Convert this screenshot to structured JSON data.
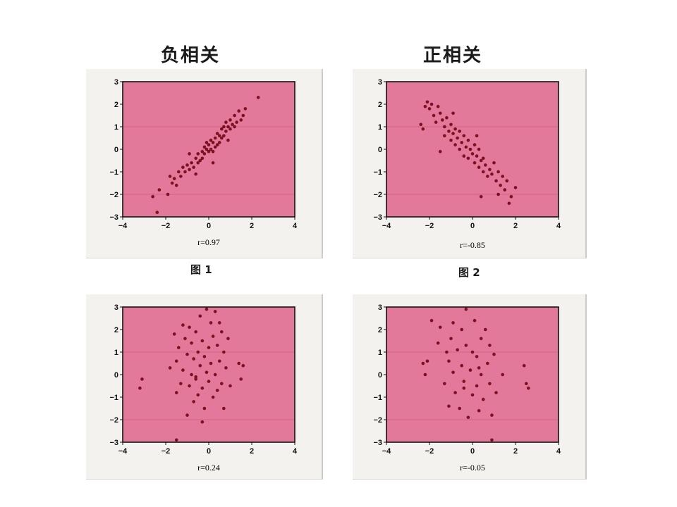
{
  "headings": {
    "left": "负相关",
    "right": "正相关"
  },
  "captions": {
    "fig1": "图 1",
    "fig2": "图 2"
  },
  "colors": {
    "plot_bg": "#e2789a",
    "point": "#7a1020",
    "frame": "#111111"
  },
  "chart_data": [
    {
      "type": "scatter",
      "id": "fig1",
      "r_label": "r=0.97",
      "xlim": [
        -4,
        4
      ],
      "ylim": [
        -3,
        3
      ],
      "xticks": [
        -4,
        -2,
        0,
        2,
        4
      ],
      "yticks": [
        -3,
        -2,
        -1,
        0,
        1,
        2,
        3
      ],
      "points": [
        [
          -2.6,
          -2.1
        ],
        [
          -2.4,
          -2.8
        ],
        [
          -2.3,
          -1.8
        ],
        [
          -1.9,
          -2.0
        ],
        [
          -1.7,
          -1.5
        ],
        [
          -1.6,
          -1.3
        ],
        [
          -1.5,
          -1.6
        ],
        [
          -1.4,
          -1.0
        ],
        [
          -1.3,
          -1.2
        ],
        [
          -1.2,
          -0.8
        ],
        [
          -1.1,
          -1.0
        ],
        [
          -1.0,
          -0.7
        ],
        [
          -0.9,
          -0.9
        ],
        [
          -0.8,
          -0.6
        ],
        [
          -0.7,
          -0.8
        ],
        [
          -0.6,
          -0.4
        ],
        [
          -0.5,
          -0.6
        ],
        [
          -0.5,
          -0.2
        ],
        [
          -0.4,
          -0.5
        ],
        [
          -0.3,
          -0.1
        ],
        [
          -0.3,
          -0.4
        ],
        [
          -0.2,
          0.1
        ],
        [
          -0.2,
          -0.2
        ],
        [
          -0.1,
          0.3
        ],
        [
          -0.1,
          0.0
        ],
        [
          0.0,
          -0.1
        ],
        [
          0.0,
          0.2
        ],
        [
          0.1,
          0.4
        ],
        [
          0.1,
          0.0
        ],
        [
          0.2,
          0.3
        ],
        [
          0.2,
          -0.1
        ],
        [
          0.3,
          0.5
        ],
        [
          0.3,
          0.1
        ],
        [
          0.4,
          0.7
        ],
        [
          0.4,
          0.2
        ],
        [
          0.5,
          0.6
        ],
        [
          0.5,
          0.3
        ],
        [
          0.6,
          0.9
        ],
        [
          0.6,
          0.5
        ],
        [
          0.7,
          1.0
        ],
        [
          0.7,
          0.6
        ],
        [
          0.8,
          0.8
        ],
        [
          0.8,
          1.2
        ],
        [
          0.9,
          1.0
        ],
        [
          1.0,
          1.3
        ],
        [
          1.0,
          0.9
        ],
        [
          1.1,
          1.1
        ],
        [
          1.2,
          1.5
        ],
        [
          1.2,
          1.0
        ],
        [
          1.3,
          1.2
        ],
        [
          1.4,
          1.7
        ],
        [
          1.5,
          1.3
        ],
        [
          1.6,
          1.5
        ],
        [
          2.3,
          2.3
        ],
        [
          -0.6,
          -1.1
        ],
        [
          0.2,
          -0.6
        ],
        [
          -0.9,
          -0.2
        ],
        [
          0.9,
          0.4
        ],
        [
          -1.8,
          -1.2
        ],
        [
          1.7,
          1.8
        ]
      ]
    },
    {
      "type": "scatter",
      "id": "fig2",
      "r_label": "r=-0.85",
      "xlim": [
        -4,
        4
      ],
      "ylim": [
        -3,
        3
      ],
      "xticks": [
        -4,
        -2,
        0,
        2,
        4
      ],
      "yticks": [
        -3,
        -2,
        -1,
        0,
        1,
        2,
        3
      ],
      "points": [
        [
          -2.4,
          1.1
        ],
        [
          -2.3,
          0.9
        ],
        [
          -2.2,
          1.9
        ],
        [
          -2.1,
          2.1
        ],
        [
          -2.0,
          1.8
        ],
        [
          -1.9,
          2.0
        ],
        [
          -1.8,
          1.5
        ],
        [
          -1.7,
          1.2
        ],
        [
          -1.6,
          1.9
        ],
        [
          -1.5,
          1.6
        ],
        [
          -1.4,
          1.3
        ],
        [
          -1.3,
          1.0
        ],
        [
          -1.3,
          0.6
        ],
        [
          -1.2,
          1.4
        ],
        [
          -1.1,
          0.8
        ],
        [
          -1.0,
          1.1
        ],
        [
          -1.0,
          0.4
        ],
        [
          -0.9,
          0.7
        ],
        [
          -0.8,
          0.9
        ],
        [
          -0.8,
          0.2
        ],
        [
          -0.7,
          0.5
        ],
        [
          -0.6,
          0.8
        ],
        [
          -0.6,
          0.0
        ],
        [
          -0.5,
          0.3
        ],
        [
          -0.4,
          0.6
        ],
        [
          -0.4,
          -0.3
        ],
        [
          -0.3,
          0.1
        ],
        [
          -0.2,
          0.4
        ],
        [
          -0.2,
          -0.4
        ],
        [
          -0.1,
          0.0
        ],
        [
          0.0,
          -0.2
        ],
        [
          0.1,
          -0.6
        ],
        [
          0.1,
          0.2
        ],
        [
          0.2,
          -0.3
        ],
        [
          0.3,
          -0.8
        ],
        [
          0.3,
          0.0
        ],
        [
          0.4,
          -0.5
        ],
        [
          0.5,
          -1.0
        ],
        [
          0.5,
          -0.4
        ],
        [
          0.6,
          -0.7
        ],
        [
          0.7,
          -1.2
        ],
        [
          0.8,
          -0.9
        ],
        [
          0.9,
          -1.1
        ],
        [
          1.0,
          -0.6
        ],
        [
          1.1,
          -1.4
        ],
        [
          1.2,
          -1.0
        ],
        [
          1.3,
          -1.6
        ],
        [
          1.4,
          -1.2
        ],
        [
          1.5,
          -1.8
        ],
        [
          1.6,
          -1.4
        ],
        [
          1.7,
          -2.4
        ],
        [
          1.8,
          -2.1
        ],
        [
          2.0,
          -1.7
        ],
        [
          0.4,
          -2.1
        ],
        [
          1.2,
          -2.0
        ],
        [
          -1.5,
          -0.1
        ],
        [
          0.2,
          0.6
        ],
        [
          -0.9,
          1.6
        ]
      ]
    },
    {
      "type": "scatter",
      "id": "fig3",
      "r_label": "r=0.24",
      "xlim": [
        -4,
        4
      ],
      "ylim": [
        -3,
        3
      ],
      "xticks": [
        -4,
        -2,
        0,
        2,
        4
      ],
      "yticks": [
        -3,
        -2,
        -1,
        0,
        1,
        2,
        3
      ],
      "points": [
        [
          -3.2,
          -0.6
        ],
        [
          -3.1,
          -0.2
        ],
        [
          -1.6,
          1.8
        ],
        [
          -1.5,
          0.6
        ],
        [
          -1.5,
          -0.8
        ],
        [
          -1.4,
          1.2
        ],
        [
          -1.3,
          -0.4
        ],
        [
          -1.2,
          2.2
        ],
        [
          -1.2,
          0.2
        ],
        [
          -1.1,
          1.6
        ],
        [
          -1.0,
          -1.8
        ],
        [
          -1.0,
          0.9
        ],
        [
          -0.9,
          -0.5
        ],
        [
          -0.9,
          2.1
        ],
        [
          -0.8,
          1.4
        ],
        [
          -0.8,
          0.0
        ],
        [
          -0.7,
          -1.2
        ],
        [
          -0.7,
          0.7
        ],
        [
          -0.6,
          1.9
        ],
        [
          -0.6,
          -0.2
        ],
        [
          -0.5,
          1.0
        ],
        [
          -0.5,
          -0.9
        ],
        [
          -0.4,
          2.6
        ],
        [
          -0.4,
          0.4
        ],
        [
          -0.3,
          1.5
        ],
        [
          -0.3,
          -0.6
        ],
        [
          -0.2,
          0.8
        ],
        [
          -0.2,
          -1.5
        ],
        [
          -0.1,
          2.9
        ],
        [
          -0.1,
          0.1
        ],
        [
          0.0,
          1.2
        ],
        [
          0.0,
          -0.3
        ],
        [
          0.1,
          2.3
        ],
        [
          0.1,
          0.5
        ],
        [
          0.2,
          -1.0
        ],
        [
          0.2,
          1.7
        ],
        [
          0.3,
          0.0
        ],
        [
          0.4,
          1.3
        ],
        [
          0.4,
          -0.7
        ],
        [
          0.5,
          2.3
        ],
        [
          0.5,
          0.6
        ],
        [
          0.6,
          -0.4
        ],
        [
          0.7,
          1.0
        ],
        [
          0.7,
          -1.5
        ],
        [
          0.8,
          0.3
        ],
        [
          0.9,
          1.6
        ],
        [
          1.0,
          -0.5
        ],
        [
          1.4,
          0.5
        ],
        [
          1.6,
          0.4
        ],
        [
          1.5,
          -0.2
        ],
        [
          -1.8,
          0.3
        ],
        [
          -0.3,
          -2.1
        ],
        [
          0.3,
          2.8
        ],
        [
          -1.5,
          -2.9
        ],
        [
          -0.6,
          -0.1
        ],
        [
          0.6,
          1.9
        ]
      ]
    },
    {
      "type": "scatter",
      "id": "fig4",
      "r_label": "r=-0.05",
      "xlim": [
        -4,
        4
      ],
      "ylim": [
        -3,
        3
      ],
      "xticks": [
        -4,
        -2,
        0,
        2,
        4
      ],
      "yticks": [
        -3,
        -2,
        -1,
        0,
        1,
        2,
        3
      ],
      "points": [
        [
          -2.3,
          0.5
        ],
        [
          -2.2,
          0.0
        ],
        [
          -2.1,
          0.6
        ],
        [
          -1.9,
          2.4
        ],
        [
          -1.6,
          1.4
        ],
        [
          -1.5,
          2.1
        ],
        [
          -1.3,
          -0.4
        ],
        [
          -1.2,
          1.0
        ],
        [
          -1.1,
          -1.4
        ],
        [
          -1.1,
          0.6
        ],
        [
          -1.0,
          1.6
        ],
        [
          -0.9,
          0.1
        ],
        [
          -0.9,
          2.3
        ],
        [
          -0.8,
          -0.8
        ],
        [
          -0.7,
          1.1
        ],
        [
          -0.6,
          -1.5
        ],
        [
          -0.5,
          0.4
        ],
        [
          -0.5,
          2.0
        ],
        [
          -0.4,
          -0.3
        ],
        [
          -0.3,
          2.9
        ],
        [
          -0.3,
          1.3
        ],
        [
          -0.2,
          -1.9
        ],
        [
          -0.1,
          0.2
        ],
        [
          0.0,
          -0.9
        ],
        [
          0.0,
          1.0
        ],
        [
          0.1,
          2.4
        ],
        [
          0.2,
          -0.5
        ],
        [
          0.2,
          0.8
        ],
        [
          0.3,
          -1.6
        ],
        [
          0.4,
          1.6
        ],
        [
          0.4,
          0.0
        ],
        [
          0.5,
          -1.1
        ],
        [
          0.6,
          2.0
        ],
        [
          0.7,
          0.5
        ],
        [
          0.8,
          -0.4
        ],
        [
          0.8,
          1.3
        ],
        [
          0.9,
          -1.8
        ],
        [
          1.0,
          0.9
        ],
        [
          1.1,
          -0.8
        ],
        [
          1.4,
          0.0
        ],
        [
          2.4,
          0.4
        ],
        [
          2.5,
          -0.4
        ],
        [
          2.6,
          -0.6
        ],
        [
          0.9,
          -2.9
        ],
        [
          -0.4,
          -0.6
        ],
        [
          0.3,
          0.3
        ]
      ]
    }
  ]
}
